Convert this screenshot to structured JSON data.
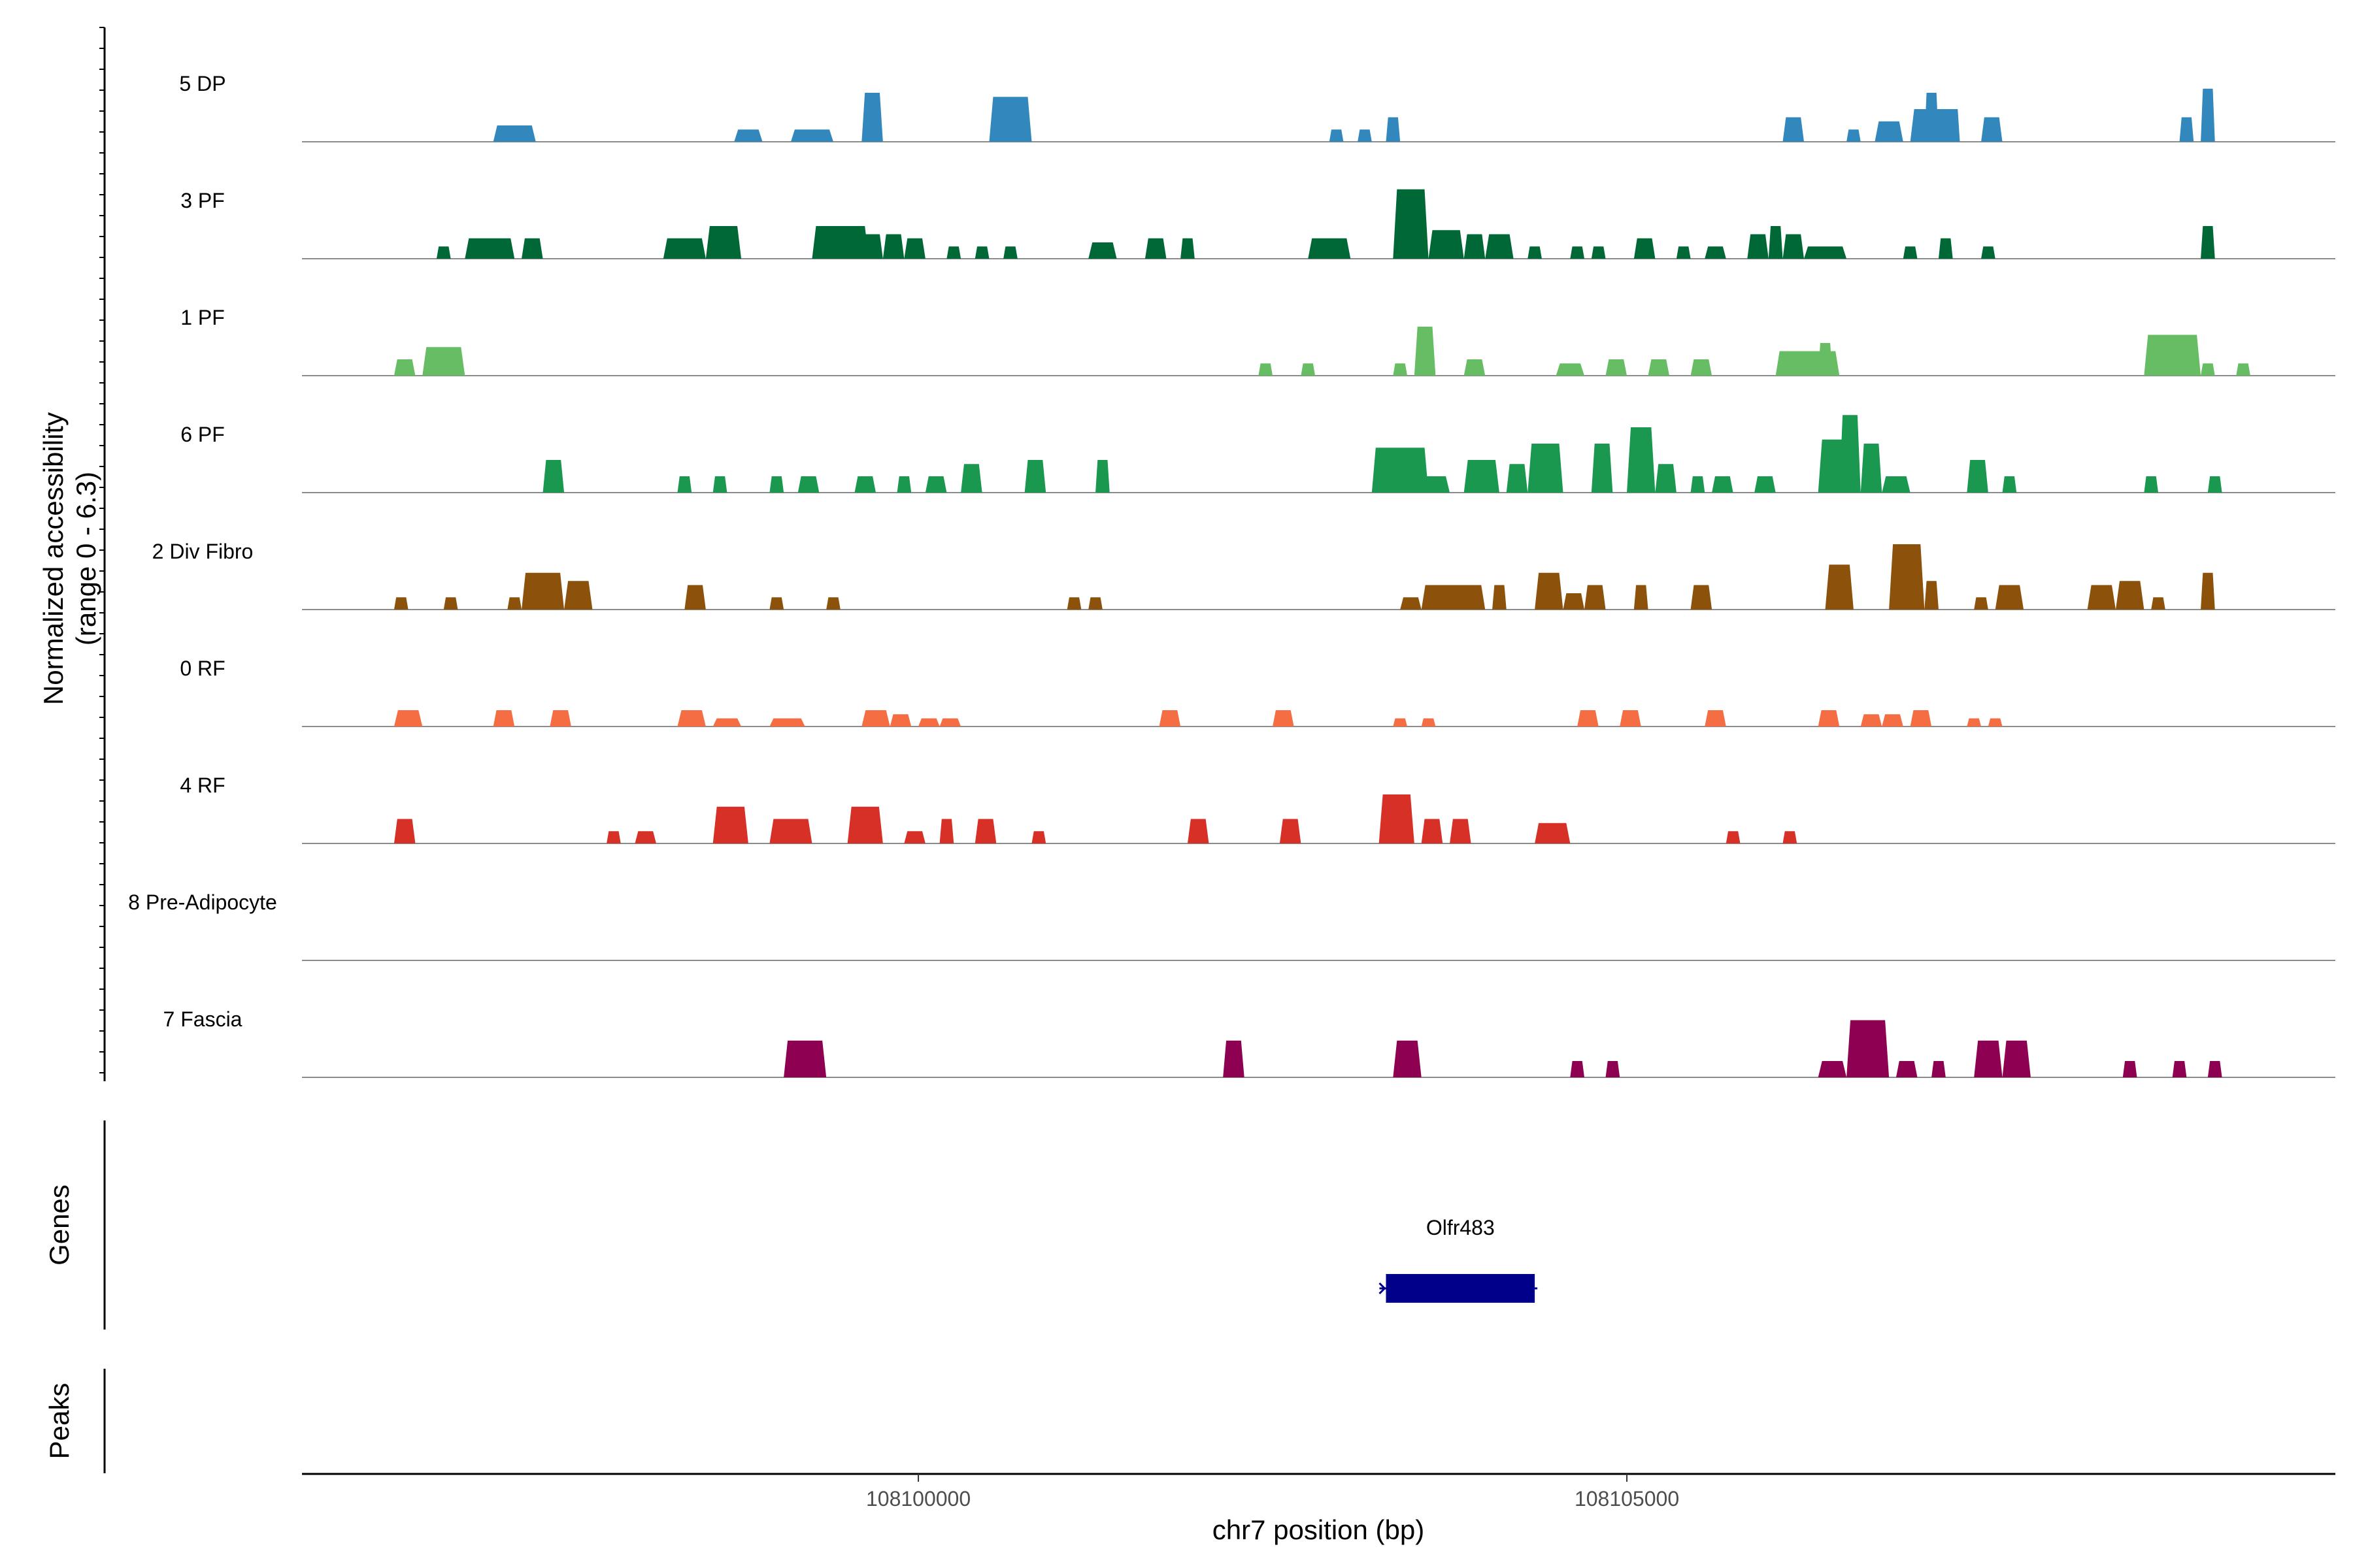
{
  "chart_data": {
    "type": "area",
    "title": "",
    "ylabel": "Normalized accessibility\n(range 0 - 6.3)",
    "ylim": [
      0,
      6.3
    ],
    "xlabel": "chr7 position (bp)",
    "xlim": [
      108095650,
      108110000
    ],
    "xticks": [
      108100000,
      108105000
    ],
    "xtick_labels": [
      "108100000",
      "108105000"
    ],
    "series": [
      {
        "name": "5 DP",
        "color": "#3288bd",
        "peaks": [
          [
            108097000,
            108097300,
            2.0
          ],
          [
            108098700,
            108098900,
            1.5
          ],
          [
            108099100,
            108099400,
            1.5
          ],
          [
            108099600,
            108099750,
            6.0
          ],
          [
            108100500,
            108100800,
            5.5
          ],
          [
            108102900,
            108103000,
            1.5
          ],
          [
            108103100,
            108103200,
            1.5
          ],
          [
            108103300,
            108103400,
            3.0
          ],
          [
            108106100,
            108106250,
            3.0
          ],
          [
            108106550,
            108106650,
            1.5
          ],
          [
            108106750,
            108106950,
            2.5
          ],
          [
            108107000,
            108107300,
            4.0
          ],
          [
            108107100,
            108107200,
            6.0
          ],
          [
            108107250,
            108107350,
            4.0
          ],
          [
            108107500,
            108107650,
            3.0
          ],
          [
            108108900,
            108109000,
            3.0
          ],
          [
            108109050,
            108109150,
            6.5
          ]
        ]
      },
      {
        "name": "3 PF",
        "color": "#006837",
        "peaks": [
          [
            108096600,
            108096700,
            1.5
          ],
          [
            108096800,
            108097150,
            2.5
          ],
          [
            108097200,
            108097350,
            2.5
          ],
          [
            108098200,
            108098500,
            2.5
          ],
          [
            108098500,
            108098750,
            4.0
          ],
          [
            108099250,
            108099650,
            4.0
          ],
          [
            108099600,
            108099750,
            3.0
          ],
          [
            108099750,
            108099900,
            3.0
          ],
          [
            108099900,
            108100050,
            2.5
          ],
          [
            108100200,
            108100300,
            1.5
          ],
          [
            108100400,
            108100500,
            1.5
          ],
          [
            108100600,
            108100700,
            1.5
          ],
          [
            108101200,
            108101400,
            2.0
          ],
          [
            108101600,
            108101750,
            2.5
          ],
          [
            108101850,
            108101950,
            2.5
          ],
          [
            108102750,
            108103050,
            2.5
          ],
          [
            108103350,
            108103600,
            8.5
          ],
          [
            108103600,
            108103850,
            3.5
          ],
          [
            108103850,
            108104000,
            3.0
          ],
          [
            108104000,
            108104200,
            3.0
          ],
          [
            108104300,
            108104400,
            1.5
          ],
          [
            108104600,
            108104700,
            1.5
          ],
          [
            108104750,
            108104850,
            1.5
          ],
          [
            108105050,
            108105200,
            2.5
          ],
          [
            108105350,
            108105450,
            1.5
          ],
          [
            108105550,
            108105700,
            1.5
          ],
          [
            108105850,
            108106000,
            3.0
          ],
          [
            108106000,
            108106100,
            4.0
          ],
          [
            108106100,
            108106250,
            3.0
          ],
          [
            108106250,
            108106550,
            1.5
          ],
          [
            108106950,
            108107050,
            1.5
          ],
          [
            108107200,
            108107300,
            2.5
          ],
          [
            108107500,
            108107600,
            1.5
          ],
          [
            108109050,
            108109150,
            4.0
          ]
        ]
      },
      {
        "name": "1 PF",
        "color": "#66bd63",
        "peaks": [
          [
            108096300,
            108096450,
            2.0
          ],
          [
            108096500,
            108096800,
            3.5
          ],
          [
            108102400,
            108102500,
            1.5
          ],
          [
            108102700,
            108102800,
            1.5
          ],
          [
            108103350,
            108103450,
            1.5
          ],
          [
            108103500,
            108103650,
            6.0
          ],
          [
            108103850,
            108104000,
            2.0
          ],
          [
            108104500,
            108104700,
            1.5
          ],
          [
            108104850,
            108105000,
            2.0
          ],
          [
            108105150,
            108105300,
            2.0
          ],
          [
            108105450,
            108105600,
            2.0
          ],
          [
            108106050,
            108106500,
            3.0
          ],
          [
            108106350,
            108106450,
            4.0
          ],
          [
            108108650,
            108109050,
            5.0
          ],
          [
            108109050,
            108109150,
            1.5
          ],
          [
            108109300,
            108109400,
            1.5
          ]
        ]
      },
      {
        "name": "6 PF",
        "color": "#1a9850",
        "peaks": [
          [
            108097350,
            108097500,
            4.0
          ],
          [
            108098300,
            108098400,
            2.0
          ],
          [
            108098550,
            108098650,
            2.0
          ],
          [
            108098950,
            108099050,
            2.0
          ],
          [
            108099150,
            108099300,
            2.0
          ],
          [
            108099550,
            108099700,
            2.0
          ],
          [
            108099850,
            108099950,
            2.0
          ],
          [
            108100050,
            108100200,
            2.0
          ],
          [
            108100300,
            108100450,
            3.5
          ],
          [
            108100750,
            108100900,
            4.0
          ],
          [
            108101250,
            108101350,
            4.0
          ],
          [
            108103200,
            108103600,
            5.5
          ],
          [
            108103550,
            108103750,
            2.0
          ],
          [
            108103850,
            108104100,
            4.0
          ],
          [
            108104150,
            108104300,
            3.5
          ],
          [
            108104300,
            108104550,
            6.0
          ],
          [
            108104750,
            108104900,
            6.0
          ],
          [
            108105000,
            108105200,
            8.0
          ],
          [
            108105200,
            108105350,
            3.5
          ],
          [
            108105450,
            108105550,
            2.0
          ],
          [
            108105600,
            108105750,
            2.0
          ],
          [
            108105900,
            108106050,
            2.0
          ],
          [
            108106350,
            108106600,
            6.5
          ],
          [
            108106500,
            108106650,
            9.5
          ],
          [
            108106650,
            108106800,
            6.0
          ],
          [
            108106800,
            108107000,
            2.0
          ],
          [
            108107400,
            108107550,
            4.0
          ],
          [
            108107650,
            108107750,
            2.0
          ],
          [
            108108650,
            108108750,
            2.0
          ],
          [
            108109100,
            108109200,
            2.0
          ]
        ]
      },
      {
        "name": "2 Div Fibro",
        "color": "#8c510a",
        "peaks": [
          [
            108096300,
            108096400,
            1.5
          ],
          [
            108096650,
            108096750,
            1.5
          ],
          [
            108097100,
            108097200,
            1.5
          ],
          [
            108097200,
            108097500,
            4.5
          ],
          [
            108097500,
            108097700,
            3.5
          ],
          [
            108098350,
            108098500,
            3.0
          ],
          [
            108098950,
            108099050,
            1.5
          ],
          [
            108099350,
            108099450,
            1.5
          ],
          [
            108101050,
            108101150,
            1.5
          ],
          [
            108101200,
            108101300,
            1.5
          ],
          [
            108103400,
            108103550,
            1.5
          ],
          [
            108103550,
            108104000,
            3.0
          ],
          [
            108104050,
            108104150,
            3.0
          ],
          [
            108104350,
            108104550,
            4.5
          ],
          [
            108104550,
            108104700,
            2.0
          ],
          [
            108104700,
            108104850,
            3.0
          ],
          [
            108105050,
            108105150,
            3.0
          ],
          [
            108105450,
            108105600,
            3.0
          ],
          [
            108106400,
            108106600,
            5.5
          ],
          [
            108106850,
            108107100,
            8.0
          ],
          [
            108107100,
            108107200,
            3.5
          ],
          [
            108107450,
            108107550,
            1.5
          ],
          [
            108107600,
            108107800,
            3.0
          ],
          [
            108108250,
            108108450,
            3.0
          ],
          [
            108108450,
            108108650,
            3.5
          ],
          [
            108108700,
            108108800,
            1.5
          ],
          [
            108109050,
            108109150,
            4.5
          ]
        ]
      },
      {
        "name": "0 RF",
        "color": "#f46d43",
        "peaks": [
          [
            108096300,
            108096500,
            2.0
          ],
          [
            108097000,
            108097150,
            2.0
          ],
          [
            108097400,
            108097550,
            2.0
          ],
          [
            108098300,
            108098500,
            2.0
          ],
          [
            108098550,
            108098750,
            1.0
          ],
          [
            108098950,
            108099200,
            1.0
          ],
          [
            108099600,
            108099800,
            2.0
          ],
          [
            108099800,
            108099950,
            1.5
          ],
          [
            108100000,
            108100150,
            1.0
          ],
          [
            108100150,
            108100300,
            1.0
          ],
          [
            108101700,
            108101850,
            2.0
          ],
          [
            108102500,
            108102650,
            2.0
          ],
          [
            108103350,
            108103450,
            1.0
          ],
          [
            108103550,
            108103650,
            1.0
          ],
          [
            108104650,
            108104800,
            2.0
          ],
          [
            108104950,
            108105100,
            2.0
          ],
          [
            108105550,
            108105700,
            2.0
          ],
          [
            108106350,
            108106500,
            2.0
          ],
          [
            108106650,
            108106800,
            1.5
          ],
          [
            108106800,
            108106950,
            1.5
          ],
          [
            108107000,
            108107150,
            2.0
          ],
          [
            108107400,
            108107500,
            1.0
          ],
          [
            108107550,
            108107650,
            1.0
          ]
        ]
      },
      {
        "name": "4 RF",
        "color": "#d73027",
        "peaks": [
          [
            108096300,
            108096450,
            3.0
          ],
          [
            108097800,
            108097900,
            1.5
          ],
          [
            108098000,
            108098150,
            1.5
          ],
          [
            108098550,
            108098800,
            4.5
          ],
          [
            108098950,
            108099250,
            3.0
          ],
          [
            108099500,
            108099750,
            4.5
          ],
          [
            108099900,
            108100050,
            1.5
          ],
          [
            108100150,
            108100250,
            3.0
          ],
          [
            108100400,
            108100550,
            3.0
          ],
          [
            108100800,
            108100900,
            1.5
          ],
          [
            108101900,
            108102050,
            3.0
          ],
          [
            108102550,
            108102700,
            3.0
          ],
          [
            108103250,
            108103500,
            6.0
          ],
          [
            108103550,
            108103700,
            3.0
          ],
          [
            108103750,
            108103900,
            3.0
          ],
          [
            108104350,
            108104600,
            2.5
          ],
          [
            108105700,
            108105800,
            1.5
          ],
          [
            108106100,
            108106200,
            1.5
          ]
        ]
      },
      {
        "name": "8 Pre-Adipocyte",
        "color": "#fdae61",
        "peaks": []
      },
      {
        "name": "7 Fascia",
        "color": "#8e0152",
        "peaks": [
          [
            108099050,
            108099350,
            4.5
          ],
          [
            108102150,
            108102300,
            4.5
          ],
          [
            108103350,
            108103550,
            4.5
          ],
          [
            108104600,
            108104700,
            2.0
          ],
          [
            108104850,
            108104950,
            2.0
          ],
          [
            108106350,
            108106550,
            2.0
          ],
          [
            108106550,
            108106850,
            7.0
          ],
          [
            108106900,
            108107050,
            2.0
          ],
          [
            108107150,
            108107250,
            2.0
          ],
          [
            108107450,
            108107650,
            4.5
          ],
          [
            108107650,
            108107850,
            4.5
          ],
          [
            108108500,
            108108600,
            2.0
          ],
          [
            108108850,
            108108950,
            2.0
          ],
          [
            108109100,
            108109200,
            2.0
          ]
        ]
      }
    ],
    "genes_track": {
      "title": "Genes",
      "genes": [
        {
          "name": "Olfr483",
          "start": 108103300,
          "end": 108104350,
          "strand": "-"
        }
      ],
      "color": "#00008b"
    },
    "peaks_track": {
      "title": "Peaks",
      "regions": []
    }
  }
}
